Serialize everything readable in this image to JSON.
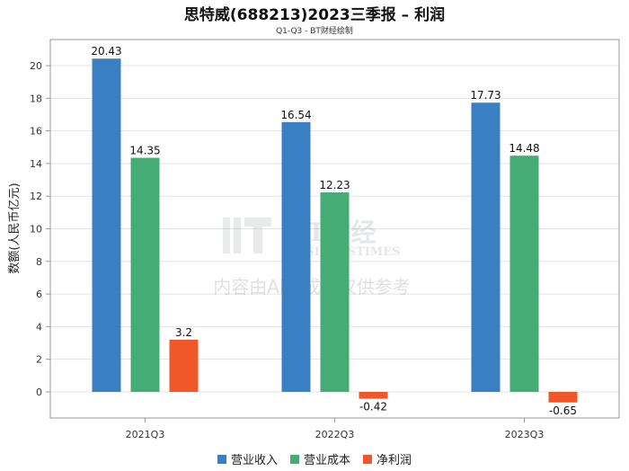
{
  "chart_data": {
    "type": "bar",
    "title": "思特威(688213)2023三季报 – 利润",
    "subtitle": "Q1-Q3 - BT财经绘制",
    "ylabel": "数额(人民币亿元)",
    "xlabel": "",
    "categories": [
      "2021Q3",
      "2022Q3",
      "2023Q3"
    ],
    "series": [
      {
        "name": "营业收入",
        "color": "#3a7fc1",
        "values": [
          20.43,
          16.54,
          17.73
        ],
        "labels": [
          "20.43",
          "16.54",
          "17.73"
        ]
      },
      {
        "name": "营业成本",
        "color": "#46ac76",
        "values": [
          14.35,
          12.23,
          14.48
        ],
        "labels": [
          "14.35",
          "12.23",
          "14.48"
        ]
      },
      {
        "name": "净利润",
        "color": "#f0582a",
        "values": [
          3.2,
          -0.42,
          -0.65
        ],
        "labels": [
          "3.2",
          "-0.42",
          "-0.65"
        ]
      }
    ],
    "ylim": [
      -1.6,
      21.6
    ],
    "yticks": [
      0,
      2,
      4,
      6,
      8,
      10,
      12,
      14,
      16,
      18,
      20
    ],
    "grid": true,
    "legend_position": "bottom"
  },
  "watermark": {
    "logo_text": "BT财经",
    "logo_sub": "BUSINESSTIMES",
    "notice": "内容由AI生成，仅供参考"
  }
}
